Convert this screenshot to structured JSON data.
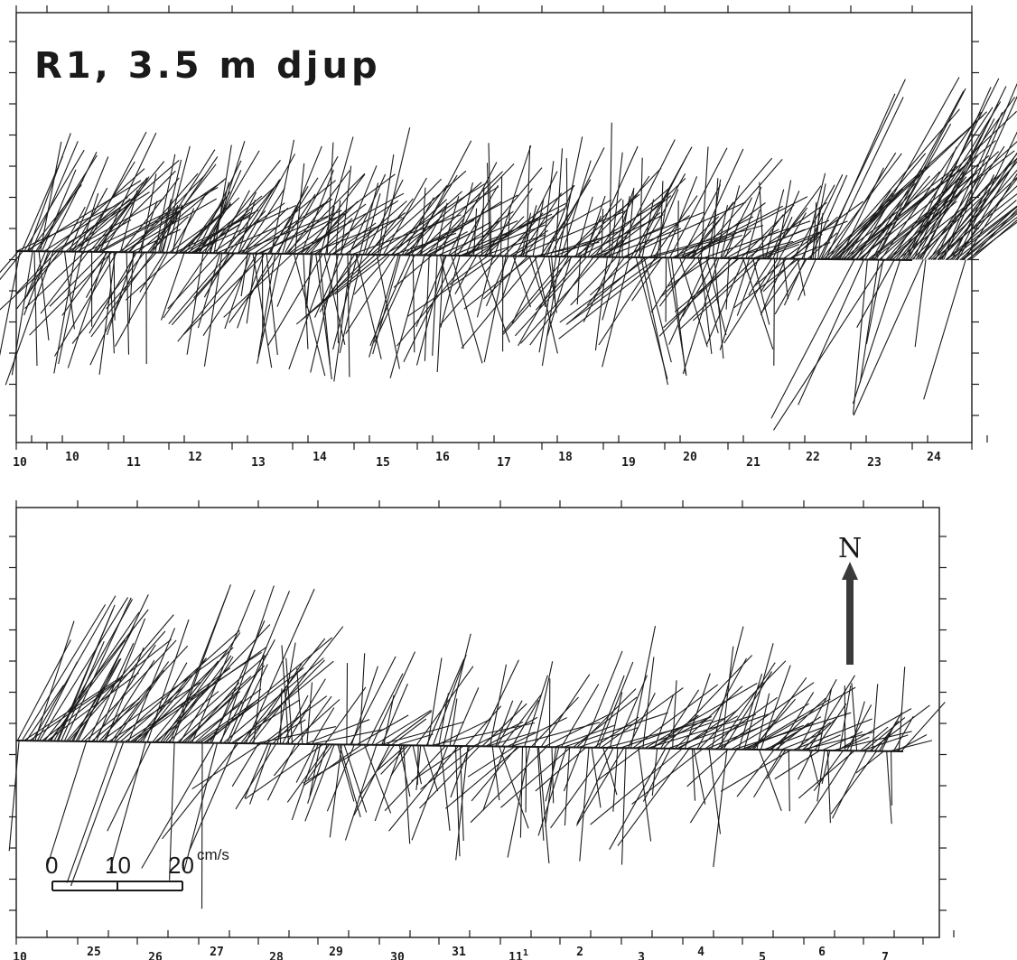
{
  "chart_data": [
    {
      "type": "stick",
      "title": "R1, 3.5 m djup",
      "tick_labels": [
        "10",
        "10",
        "11",
        "12",
        "13",
        "14",
        "15",
        "16",
        "17",
        "18",
        "19",
        "20",
        "21",
        "22",
        "23",
        "24"
      ],
      "baseline_velocity": 0,
      "segments": [
        {
          "start": 0.0,
          "end": 3.5,
          "max_speed": 21,
          "spread_deg": 55
        },
        {
          "start": 3.5,
          "end": 7.0,
          "max_speed": 18,
          "spread_deg": 60
        },
        {
          "start": 7.0,
          "end": 11.0,
          "max_speed": 20,
          "spread_deg": 70
        },
        {
          "start": 11.0,
          "end": 15.0,
          "max_speed": 18,
          "spread_deg": 80
        },
        {
          "start": 15.0,
          "end": 18.5,
          "max_speed": 20,
          "spread_deg": 75
        },
        {
          "start": 18.5,
          "end": 21.0,
          "max_speed": 16,
          "spread_deg": 85
        },
        {
          "start": 21.0,
          "end": 25.0,
          "max_speed": 32,
          "spread_deg": 30
        }
      ]
    },
    {
      "type": "stick",
      "title": "",
      "tick_labels": [
        "10",
        "25",
        "26",
        "27",
        "28",
        "29",
        "30",
        "31",
        "11",
        "2",
        "3",
        "4",
        "5",
        "6",
        "7"
      ],
      "tick_label_superscripts": {
        "8": "1"
      },
      "baseline_velocity": 0,
      "segments": [
        {
          "start": 0.0,
          "end": 4.0,
          "max_speed": 26,
          "spread_deg": 40
        },
        {
          "start": 4.0,
          "end": 7.0,
          "max_speed": 16,
          "spread_deg": 85
        },
        {
          "start": 7.0,
          "end": 10.0,
          "max_speed": 18,
          "spread_deg": 80
        },
        {
          "start": 10.0,
          "end": 12.5,
          "max_speed": 20,
          "spread_deg": 70
        },
        {
          "start": 12.5,
          "end": 15.0,
          "max_speed": 14,
          "spread_deg": 85
        }
      ]
    }
  ],
  "scale_bar": {
    "label_0": "0",
    "label_10": "10",
    "label_20": "20",
    "unit": "cm/s"
  },
  "north_arrow": {
    "label": "N"
  },
  "colors": {
    "ink": "#1a1a1a",
    "paper": "#ffffff"
  }
}
